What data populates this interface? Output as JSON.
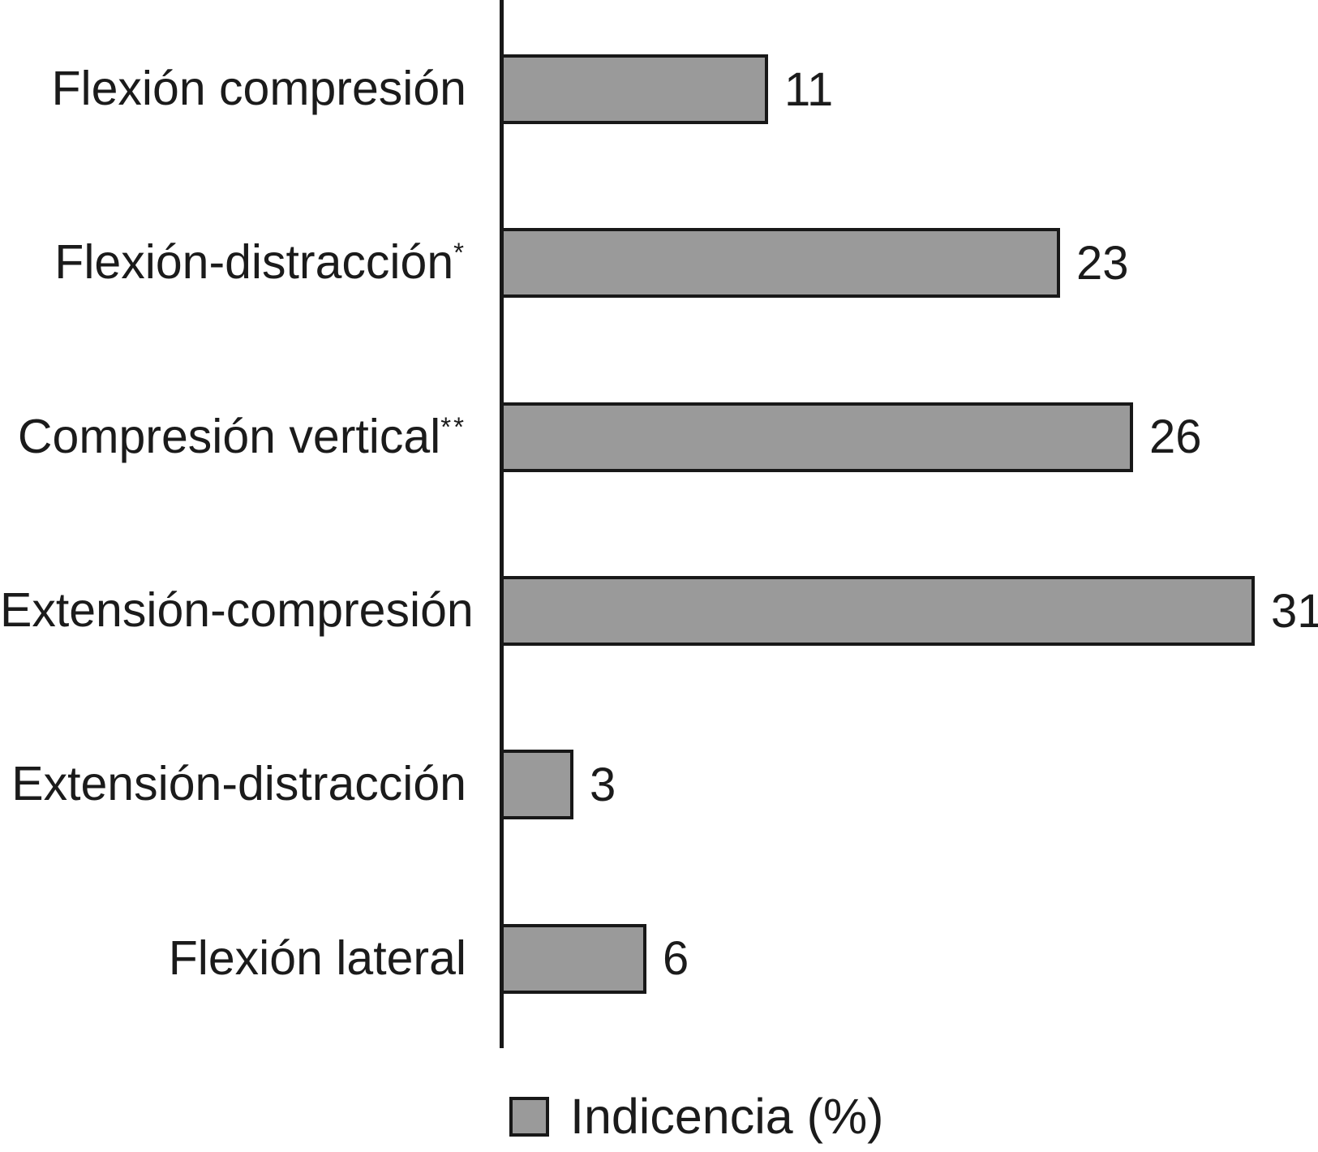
{
  "chart_data": {
    "type": "bar",
    "orientation": "horizontal",
    "title": "",
    "xlabel": "",
    "ylabel": "",
    "xlim": [
      0,
      31
    ],
    "grid": false,
    "value_labels_shown": true,
    "categories": [
      {
        "text": "Flexión compresión",
        "sup": ""
      },
      {
        "text": "Flexión-distracción",
        "sup": "*"
      },
      {
        "text": "Compresión vertical",
        "sup": "**"
      },
      {
        "text": "Extensión-compresión",
        "sup": ""
      },
      {
        "text": "Extensión-distracción",
        "sup": ""
      },
      {
        "text": "Flexión lateral",
        "sup": ""
      }
    ],
    "values": [
      11,
      23,
      26,
      31,
      3,
      6
    ],
    "legend": {
      "label": "Indicencia (%)",
      "position": "bottom"
    },
    "colors": {
      "bar_fill": "#9a9a9a",
      "bar_border": "#181818",
      "axis": "#181818",
      "text": "#1b1b1b",
      "background": "#ffffff"
    }
  }
}
